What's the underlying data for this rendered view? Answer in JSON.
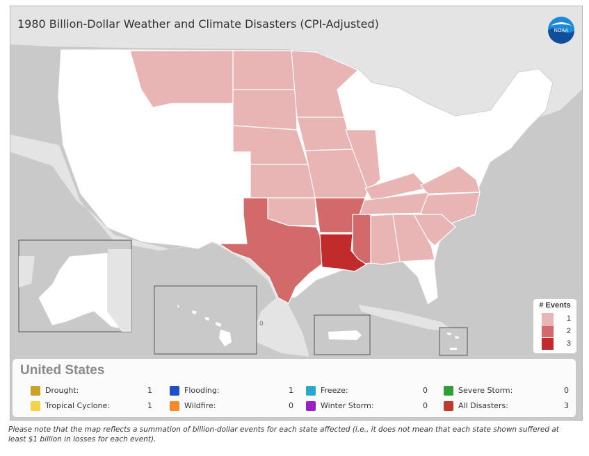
{
  "map": {
    "title": "1980 Billion-Dollar Weather and Climate Disasters (CPI-Adjusted)",
    "logo_text": "NOAA",
    "colors": {
      "water": "#c9c9c9",
      "land": "#e4e4e4",
      "state_default": "#ffffff",
      "one_event": "#e8b4b4",
      "two_events": "#d26a6a",
      "three_events": "#c02a2a"
    },
    "states_by_events": {
      "1": [
        "Montana",
        "North Dakota",
        "South Dakota",
        "Minnesota",
        "Nebraska",
        "Iowa",
        "Kansas",
        "Missouri",
        "Illinois",
        "Oklahoma",
        "Kentucky",
        "Tennessee",
        "Alabama",
        "Georgia",
        "South Carolina",
        "North Carolina",
        "Virginia"
      ],
      "2": [
        "Texas",
        "Arkansas",
        "Mississippi"
      ],
      "3": [
        "Louisiana"
      ]
    },
    "inset_marker": "0",
    "legend": {
      "title": "# Events",
      "items": [
        {
          "value": "1",
          "color": "#e8b4b4"
        },
        {
          "value": "2",
          "color": "#d26a6a"
        },
        {
          "value": "3",
          "color": "#c02a2a"
        }
      ]
    }
  },
  "summary": {
    "title": "United States",
    "categories": [
      {
        "label": "Drought:",
        "count": "1",
        "color": "#c9a227"
      },
      {
        "label": "Flooding:",
        "count": "1",
        "color": "#1f4fc4"
      },
      {
        "label": "Freeze:",
        "count": "0",
        "color": "#2aa7c9"
      },
      {
        "label": "Severe Storm:",
        "count": "0",
        "color": "#2e9d3a"
      },
      {
        "label": "Tropical Cyclone:",
        "count": "1",
        "color": "#f5d24a"
      },
      {
        "label": "Wildfire:",
        "count": "0",
        "color": "#f58a2a"
      },
      {
        "label": "Winter Storm:",
        "count": "0",
        "color": "#9b1fc9"
      },
      {
        "label": "All Disasters:",
        "count": "3",
        "color": "#c0392b"
      }
    ]
  },
  "footnote": "Please note that the map reflects a summation of billion-dollar events for each state affected (i.e., it does not mean that each state shown suffered at least $1 billion in losses for each event)."
}
